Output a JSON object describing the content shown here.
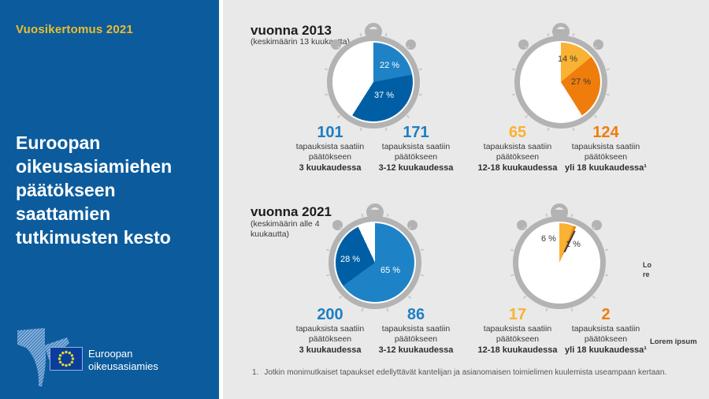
{
  "palette": {
    "sidebar_blue": "#0c5c9d",
    "gold": "#eebd2e",
    "panel_gray": "#e9e9e9",
    "watch_gray": "#b3b3b3",
    "blue_light": "#1e83c6",
    "blue_dark": "#005fa4",
    "orange_light": "#f9b233",
    "orange_dark": "#ef7d0c",
    "number_blue": "#1d7fc4",
    "text_dark": "#3a3a39",
    "flag_blue": "#0b3e9b",
    "star_yellow": "#dfd82f"
  },
  "sidebar": {
    "report_label": "Vuosikertomus 2021",
    "title": "Euroopan oikeusasiamiehen päätökseen saattamien tutkimusten kesto",
    "logo_line1": "Euroopan",
    "logo_line2": "oikeusasiamies"
  },
  "rows": [
    {
      "title": "vuonna 2013",
      "subtitle": "(keskimäärin 13 kuukautta)"
    },
    {
      "title": "vuonna 2021",
      "subtitle": "(keskimäärin alle 4 kuukautta)"
    }
  ],
  "groups": [
    {
      "slices": [
        {
          "percent": 22,
          "label": "22 %",
          "color": "#1e83c6"
        },
        {
          "percent": 37,
          "label": "37 %",
          "color": "#005fa4"
        }
      ],
      "stats": [
        {
          "value": "101",
          "desc": "tapauksista saatiin päätökseen",
          "duration": "3 kuukaudessa"
        },
        {
          "value": "171",
          "desc": "tapauksista saatiin päätökseen",
          "duration": "3-12 kuukaudessa"
        }
      ]
    },
    {
      "slices": [
        {
          "percent": 14,
          "label": "14 %",
          "color": "#f9b233"
        },
        {
          "percent": 27,
          "label": "27 %",
          "color": "#ef7d0c"
        }
      ],
      "stats": [
        {
          "value": "65",
          "desc": "tapauksista saatiin päätökseen",
          "duration": "12-18 kuukaudessa"
        },
        {
          "value": "124",
          "desc": "tapauksista saatiin päätökseen",
          "duration": "yli 18 kuukaudessa¹"
        }
      ]
    },
    {
      "slices": [
        {
          "percent": 65,
          "label": "65 %",
          "color": "#1e83c6"
        },
        {
          "percent": 28,
          "label": "28 %",
          "color": "#005fa4"
        }
      ],
      "stats": [
        {
          "value": "200",
          "desc": "tapauksista saatiin päätökseen",
          "duration": "3 kuukaudessa"
        },
        {
          "value": "86",
          "desc": "tapauksista saatiin päätökseen",
          "duration": "3-12 kuukaudessa"
        }
      ]
    },
    {
      "slices": [
        {
          "percent": 6,
          "label": "6 %",
          "color": "#f9b233"
        },
        {
          "percent": 1,
          "label": "1 %",
          "color": "#ef7d0c"
        }
      ],
      "stats": [
        {
          "value": "17",
          "desc": "tapauksista saatiin päätökseen",
          "duration": "12-18 kuukaudessa"
        },
        {
          "value": "2",
          "desc": "tapauksista saatiin päätökseen",
          "duration": "yli 18 kuukaudessa¹"
        }
      ]
    }
  ],
  "footnote": {
    "marker": "1.",
    "text": "Jotkin monimutkaiset tapaukset edellyttävät kantelijan ja asianomaisen toimielimen kuulemista useampaan kertaan."
  },
  "stray": {
    "small_line1": "Lo",
    "small_line2": "re",
    "bold": "Lorem ipsum"
  },
  "chart_data": [
    {
      "type": "pie",
      "title": "vuonna 2013",
      "subtitle": "(keskimäärin 13 kuukautta)",
      "legend_position": "none",
      "slices": [
        {
          "label": "3 kuukaudessa",
          "count": 101,
          "percent": 22,
          "color": "#1e83c6"
        },
        {
          "label": "3-12 kuukaudessa",
          "count": 171,
          "percent": 37,
          "color": "#005fa4"
        },
        {
          "label": "12-18 kuukaudessa",
          "count": 65,
          "percent": 14,
          "color": "#f9b233"
        },
        {
          "label": "yli 18 kuukaudessa",
          "count": 124,
          "percent": 27,
          "color": "#ef7d0c"
        }
      ]
    },
    {
      "type": "pie",
      "title": "vuonna 2021",
      "subtitle": "(keskimäärin alle 4 kuukautta)",
      "legend_position": "none",
      "slices": [
        {
          "label": "3 kuukaudessa",
          "count": 200,
          "percent": 65,
          "color": "#1e83c6"
        },
        {
          "label": "3-12 kuukaudessa",
          "count": 86,
          "percent": 28,
          "color": "#005fa4"
        },
        {
          "label": "12-18 kuukaudessa",
          "count": 17,
          "percent": 6,
          "color": "#f9b233"
        },
        {
          "label": "yli 18 kuukaudessa",
          "count": 2,
          "percent": 1,
          "color": "#ef7d0c"
        }
      ]
    }
  ]
}
